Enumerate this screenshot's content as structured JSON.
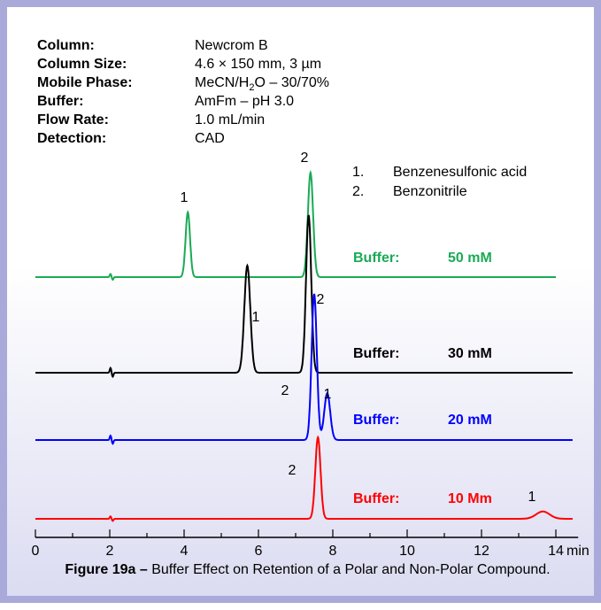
{
  "conditions": [
    {
      "label": "Column:",
      "value": "Newcrom B"
    },
    {
      "label": "Column Size:",
      "value": "4.6 × 150 mm, 3 µm"
    },
    {
      "label": "Mobile Phase:",
      "value_pre": "MeCN/H",
      "value_sub": "2",
      "value_post": "O – 30/70%"
    },
    {
      "label": "Buffer:",
      "value": "AmFm – pH 3.0"
    },
    {
      "label": "Flow Rate:",
      "value": "1.0 mL/min"
    },
    {
      "label": "Detection:",
      "value": "CAD"
    }
  ],
  "peak_legend": [
    {
      "num": "1.",
      "name": "Benzenesulfonic acid"
    },
    {
      "num": "2.",
      "name": "Benzonitrile"
    }
  ],
  "caption": {
    "bold": "Figure 19a –",
    "text": " Buffer Effect on Retention of a Polar and Non-Polar Compound."
  },
  "colors": {
    "frame": "#a9a9da",
    "gradient_bottom": "#dcdcf2",
    "trace_50mM": "#1aaa55",
    "trace_30mM": "#000000",
    "trace_20mM": "#0000ff",
    "trace_10mM": "#ff0000"
  },
  "chart_data": {
    "type": "line",
    "xlabel": "min",
    "xlim": [
      0,
      14.6
    ],
    "xticks": [
      0,
      2,
      4,
      6,
      8,
      10,
      12,
      14
    ],
    "series": [
      {
        "buffer_label": "Buffer:",
        "concentration": "50 mM",
        "color": "#1aaa55",
        "peaks": [
          {
            "label": "1",
            "rt": 4.1,
            "height": 0.62,
            "width": 0.06
          },
          {
            "label": "2",
            "rt": 7.4,
            "height": 1.0,
            "width": 0.07
          }
        ]
      },
      {
        "buffer_label": "Buffer:",
        "concentration": "30 mM",
        "color": "#000000",
        "peaks": [
          {
            "label": "1",
            "rt": 5.7,
            "height": 0.68,
            "width": 0.08
          },
          {
            "label": "2",
            "rt": 7.35,
            "height": 1.0,
            "width": 0.07
          }
        ]
      },
      {
        "buffer_label": "Buffer:",
        "concentration": "20 mM",
        "color": "#0000ff",
        "peaks": [
          {
            "label": "2",
            "rt": 7.5,
            "height": 1.0,
            "width": 0.07
          },
          {
            "label": "1",
            "rt": 7.85,
            "height": 0.32,
            "width": 0.08
          }
        ]
      },
      {
        "buffer_label": "Buffer:",
        "concentration": "10 Mm",
        "color": "#ff0000",
        "peaks": [
          {
            "label": "2",
            "rt": 7.6,
            "height": 1.0,
            "width": 0.07
          },
          {
            "label": "1",
            "rt": 13.65,
            "height": 0.09,
            "width": 0.18
          }
        ]
      }
    ]
  }
}
